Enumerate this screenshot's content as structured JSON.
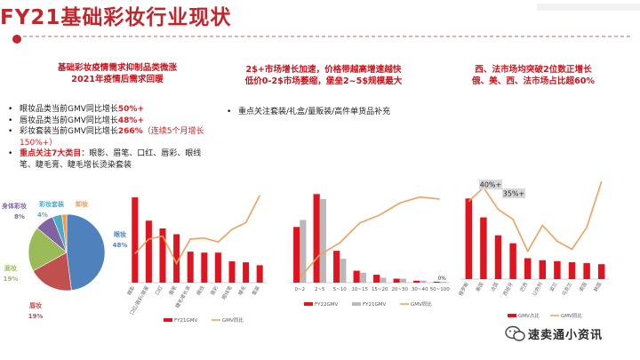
{
  "title": "FY21基础彩妆行业现状",
  "col1": {
    "heading_line1": "基础彩妆疫情需求抑制品类微涨",
    "heading_line2": "2021年疫情后需求回暖",
    "bullets": [
      {
        "text": "眼妆品类当前GMV同比增长",
        "highlight": "50%+"
      },
      {
        "text": "唇妆品类当前GMV同比增长",
        "highlight": "48%+"
      },
      {
        "text": "彩妆套装当前GMV同比增长",
        "highlight": "266%",
        "extra": "（连续5个月增长150%+）"
      },
      {
        "text_prefix": "重点关注7大类目：",
        "text": "眼影、眉笔、口红、唇彩、眼线笔、睫毛膏、睫毛增长烫染套装"
      }
    ]
  },
  "col2": {
    "heading_line1": "2$+市场增长加速，价格带越高增速越快",
    "heading_line2": "低价0-2$市场萎缩，堡垒2~5$规模最大",
    "bullets": [
      "重点关注套装/礼盒/量贩装/高件单货品补充"
    ]
  },
  "col3": {
    "heading_line1": "西、法市场均突破2位数正增长",
    "heading_line2": "俄、美、西、法市场占比超60%"
  },
  "colors": {
    "brand_red": "#c2262b",
    "bar_red": "#e0141e",
    "bar_gray": "#b9b9b9",
    "line_orange": "#f0a05c",
    "pie_blue": "#4f81bd",
    "pie_red": "#c0504d",
    "pie_green": "#9bbb59",
    "pie_purple": "#8064a2",
    "pie_teal": "#4bacc6",
    "pie_orange": "#f79646"
  },
  "watermark": "速卖通小资讯",
  "chart_data": [
    {
      "type": "pie",
      "slices": [
        {
          "label": "眼妆",
          "value": 48,
          "text": "48%",
          "color": "#4f81bd"
        },
        {
          "label": "唇妆",
          "value": 19,
          "text": "19%",
          "color": "#c0504d"
        },
        {
          "label": "面妆",
          "value": 19,
          "text": "19%",
          "color": "#9bbb59"
        },
        {
          "label": "身体彩妆",
          "value": 8,
          "text": "8%",
          "color": "#8064a2"
        },
        {
          "label": "彩妆套装",
          "value": 4,
          "text": "4%",
          "color": "#4bacc6"
        },
        {
          "label": "卸妆",
          "value": 2,
          "text": "",
          "color": "#f79646"
        }
      ]
    },
    {
      "type": "bar",
      "categories": [
        "眼影",
        "口红/唇彩/唇蜜",
        "口红",
        "眉笔",
        "睫毛增长液",
        "眼线",
        "唇彩",
        "眼线笔",
        "睫毛",
        "套装"
      ],
      "series": [
        {
          "name": "FY21GMV",
          "kind": "bar",
          "values": [
            88,
            64,
            56,
            50,
            32,
            31,
            31,
            22,
            21,
            18
          ]
        },
        {
          "name": "GMV同比",
          "kind": "line",
          "values": [
            30,
            45,
            48,
            20,
            45,
            46,
            42,
            55,
            62,
            90
          ]
        }
      ],
      "legend": [
        "FY21GMV",
        "GMV同比"
      ]
    },
    {
      "type": "bar",
      "categories": [
        "0~2",
        "2~5",
        "5~10",
        "10~15",
        "15~20",
        "20~30",
        "30~40",
        "50~100"
      ],
      "series": [
        {
          "name": "FY22GMV",
          "kind": "bar",
          "values": [
            56,
            89,
            32,
            12,
            8,
            4,
            2,
            1
          ]
        },
        {
          "name": "FY21GMV",
          "kind": "bar",
          "values": [
            63,
            84,
            24,
            10,
            5,
            4,
            2,
            1
          ]
        },
        {
          "name": "GMV同比",
          "kind": "line",
          "values": [
            5,
            28,
            40,
            60,
            68,
            80,
            86,
            84
          ]
        }
      ],
      "annotations": [
        {
          "text": "0%"
        }
      ],
      "legend": [
        "FY22GMV",
        "FY21GMV",
        "GMV同比"
      ]
    },
    {
      "type": "bar",
      "categories": [
        "俄罗斯",
        "美国",
        "法国",
        "西班牙",
        "巴西",
        "以色列",
        "波兰",
        "乌克兰",
        "英国",
        "韩国"
      ],
      "series": [
        {
          "name": "GMV占比",
          "kind": "bar",
          "values": [
            81,
            62,
            44,
            36,
            21,
            19,
            18,
            17,
            16,
            15
          ]
        },
        {
          "name": "GMV同比",
          "kind": "line",
          "values": [
            78,
            92,
            70,
            60,
            28,
            54,
            38,
            30,
            52,
            98
          ]
        }
      ],
      "annotations": [
        {
          "text": "40%+"
        },
        {
          "text": "35%+"
        }
      ],
      "legend": [
        "GMV占比",
        "GMV同比"
      ]
    }
  ]
}
